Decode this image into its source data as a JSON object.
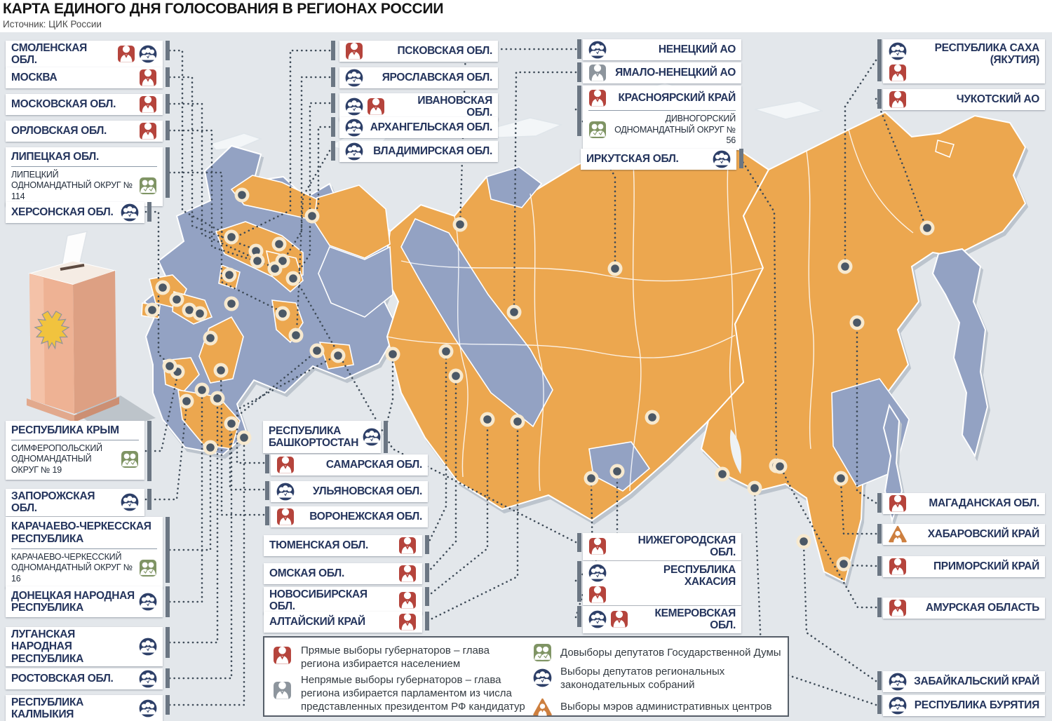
{
  "header": {
    "title": "КАРТА ЕДИНОГО ДНЯ ГОЛОСОВАНИЯ В РЕГИОНАХ РОССИИ",
    "source": "Источник: ЦИК России"
  },
  "legend": {
    "items": [
      {
        "icon": "gov-direct",
        "label": "Прямые выборы губернаторов – глава региона избирается населением"
      },
      {
        "icon": "gov-indirect",
        "label": "Непрямые выборы губернаторов – глава региона избирается парламентом из числа представленных президентом РФ кандидатур"
      },
      {
        "icon": "duma",
        "label": "Довыборы депутатов Государственной Думы"
      },
      {
        "icon": "regional",
        "label": "Выборы депутатов региональных законодательных собраний"
      },
      {
        "icon": "mayor",
        "label": "Выборы мэров административных центров"
      }
    ]
  },
  "regions": [
    {
      "id": "smolensk",
      "name": "СМОЛЕНСКАЯ ОБЛ.",
      "icons": [
        "gov-direct",
        "regional"
      ]
    },
    {
      "id": "moscow_city",
      "name": "МОСКВА",
      "icons": [
        "gov-direct"
      ]
    },
    {
      "id": "moscow_obl",
      "name": "МОСКОВСКАЯ ОБЛ.",
      "icons": [
        "gov-direct"
      ]
    },
    {
      "id": "orel",
      "name": "ОРЛОВСКАЯ ОБЛ.",
      "icons": [
        "gov-direct"
      ]
    },
    {
      "id": "lipetsk",
      "name": "ЛИПЕЦКАЯ ОБЛ.",
      "sub": "ЛИПЕЦКИЙ ОДНОМАНДАТНЫЙ ОКРУГ № 114",
      "icons": [
        "duma"
      ]
    },
    {
      "id": "kherson",
      "name": "ХЕРСОНСКАЯ ОБЛ.",
      "icons": [
        "regional"
      ]
    },
    {
      "id": "crimea",
      "name": "РЕСПУБЛИКА КРЫМ",
      "sub": "СИМФЕРОПОЛЬСКИЙ ОДНОМАНДАТНЫЙ ОКРУГ № 19",
      "icons": [
        "duma"
      ]
    },
    {
      "id": "zaporozhye",
      "name": "ЗАПОРОЖСКАЯ ОБЛ.",
      "icons": [
        "regional"
      ]
    },
    {
      "id": "kchr",
      "name": "КАРАЧАЕВО-ЧЕРКЕССКАЯ РЕСПУБЛИКА",
      "sub": "КАРАЧАЕВО-ЧЕРКЕССКИЙ ОДНОМАНДАТНЫЙ ОКРУГ № 16",
      "icons": [
        "duma"
      ]
    },
    {
      "id": "dnr",
      "name": "ДОНЕЦКАЯ НАРОДНАЯ РЕСПУБЛИКА",
      "icons": [
        "regional"
      ]
    },
    {
      "id": "lnr",
      "name": "ЛУГАНСКАЯ НАРОДНАЯ РЕСПУБЛИКА",
      "icons": [
        "regional"
      ]
    },
    {
      "id": "rostov",
      "name": "РОСТОВСКАЯ ОБЛ.",
      "icons": [
        "regional"
      ]
    },
    {
      "id": "kalmykia",
      "name": "РЕСПУБЛИКА КАЛМЫКИЯ",
      "icons": [
        "regional"
      ]
    },
    {
      "id": "pskov",
      "name": "ПСКОВСКАЯ ОБЛ.",
      "icons": [
        "gov-direct"
      ]
    },
    {
      "id": "yaroslavl",
      "name": "ЯРОСЛАВСКАЯ ОБЛ.",
      "icons": [
        "regional"
      ]
    },
    {
      "id": "ivanovo",
      "name": "ИВАНОВСКАЯ ОБЛ.",
      "icons": [
        "regional",
        "gov-direct"
      ]
    },
    {
      "id": "arkhangelsk",
      "name": "АРХАНГЕЛЬСКАЯ ОБЛ.",
      "icons": [
        "regional"
      ]
    },
    {
      "id": "vladimir",
      "name": "ВЛАДИМИРСКАЯ ОБЛ.",
      "icons": [
        "regional"
      ]
    },
    {
      "id": "bashkortostan",
      "name": "РЕСПУБЛИКА БАШКОРТОСТАН",
      "icons": [
        "regional"
      ]
    },
    {
      "id": "samara",
      "name": "САМАРСКАЯ ОБЛ.",
      "icons": [
        "gov-direct"
      ]
    },
    {
      "id": "ulyanovsk",
      "name": "УЛЬЯНОВСКАЯ ОБЛ.",
      "icons": [
        "regional"
      ]
    },
    {
      "id": "voronezh",
      "name": "ВОРОНЕЖСКАЯ ОБЛ.",
      "icons": [
        "gov-direct"
      ]
    },
    {
      "id": "tyumen",
      "name": "ТЮМЕНСКАЯ ОБЛ.",
      "icons": [
        "gov-direct"
      ]
    },
    {
      "id": "omsk",
      "name": "ОМСКАЯ ОБЛ.",
      "icons": [
        "gov-direct"
      ]
    },
    {
      "id": "novosibirsk",
      "name": "НОВОСИБИРСКАЯ ОБЛ.",
      "icons": [
        "gov-direct"
      ]
    },
    {
      "id": "altai",
      "name": "АЛТАЙСКИЙ КРАЙ",
      "icons": [
        "gov-direct"
      ]
    },
    {
      "id": "nenets",
      "name": "НЕНЕЦКИЙ АО",
      "icons": [
        "regional"
      ]
    },
    {
      "id": "yamal",
      "name": "ЯМАЛО-НЕНЕЦКИЙ АО",
      "icons": [
        "gov-indirect"
      ]
    },
    {
      "id": "krasnoyarsk",
      "name": "КРАСНОЯРСКИЙ КРАЙ",
      "sub": "ДИВНОГОРСКИЙ ОДНОМАНДАТНЫЙ ОКРУГ № 56",
      "icons": [
        "gov-direct",
        "duma"
      ]
    },
    {
      "id": "irkutsk",
      "name": "ИРКУТСКАЯ ОБЛ.",
      "icons": [
        "regional"
      ]
    },
    {
      "id": "nizhny",
      "name": "НИЖЕГОРОДСКАЯ ОБЛ.",
      "icons": [
        "gov-direct"
      ]
    },
    {
      "id": "khakassia",
      "name": "РЕСПУБЛИКА ХАКАСИЯ",
      "icons": [
        "regional",
        "gov-direct"
      ]
    },
    {
      "id": "kemerovo",
      "name": "КЕМЕРОВСКАЯ ОБЛ.",
      "icons": [
        "regional",
        "gov-direct"
      ]
    },
    {
      "id": "sakha",
      "name": "РЕСПУБЛИКА САХА (ЯКУТИЯ)",
      "icons": [
        "regional",
        "gov-direct"
      ]
    },
    {
      "id": "chukotka",
      "name": "ЧУКОТСКИЙ АО",
      "icons": [
        "gov-direct"
      ]
    },
    {
      "id": "magadan",
      "name": "МАГАДАНСКАЯ ОБЛ.",
      "icons": [
        "gov-direct"
      ]
    },
    {
      "id": "khabarovsk",
      "name": "ХАБАРОВСКИЙ КРАЙ",
      "icons": [
        "mayor"
      ]
    },
    {
      "id": "primorye",
      "name": "ПРИМОРСКИЙ КРАЙ",
      "icons": [
        "gov-direct"
      ]
    },
    {
      "id": "amur",
      "name": "АМУРСКАЯ ОБЛАСТЬ",
      "icons": [
        "gov-direct"
      ]
    },
    {
      "id": "zabaykalsky",
      "name": "ЗАБАЙКАЛЬСКИЙ КРАЙ",
      "icons": [
        "regional"
      ]
    },
    {
      "id": "buryatia",
      "name": "РЕСПУБЛИКА БУРЯТИЯ",
      "icons": [
        "regional"
      ]
    }
  ],
  "colors": {
    "background": "#e3e7eb",
    "land_orange": "#eca74f",
    "land_blue": "#93a2c3",
    "label_text": "#24345c",
    "marker": {
      "ring": "#f7e9cf",
      "dot": "#4b5866"
    },
    "icons": {
      "gov-direct": "#b5443c",
      "gov-indirect": "#8d959d",
      "duma": "#7f9464",
      "regional": "#2d3f68",
      "mayor": "#cd7f3f"
    }
  }
}
